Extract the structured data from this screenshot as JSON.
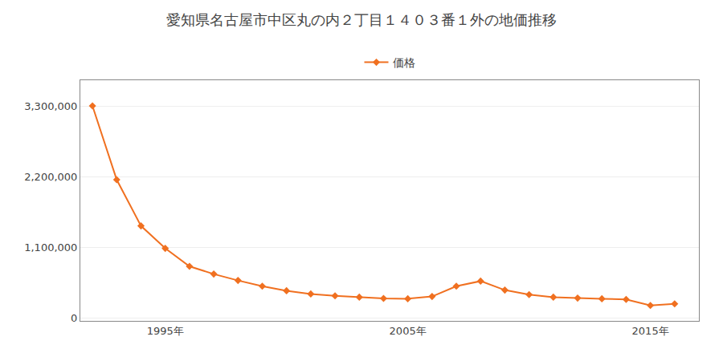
{
  "chart_data": {
    "type": "line",
    "title": "愛知県名古屋市中区丸の内２丁目１４０３番１外の地価推移",
    "x": [
      1992,
      1993,
      1994,
      1995,
      1996,
      1997,
      1998,
      1999,
      2000,
      2001,
      2002,
      2003,
      2004,
      2005,
      2006,
      2007,
      2008,
      2009,
      2010,
      2011,
      2012,
      2013,
      2014,
      2015,
      2016
    ],
    "series": [
      {
        "name": "価格",
        "color": "#f07020",
        "values": [
          3300000,
          2150000,
          1430000,
          1080000,
          800000,
          680000,
          580000,
          490000,
          420000,
          370000,
          340000,
          320000,
          300000,
          295000,
          330000,
          490000,
          570000,
          430000,
          360000,
          320000,
          305000,
          295000,
          285000,
          190000,
          215000
        ]
      }
    ],
    "xlim": [
      1991.5,
      2017.0
    ],
    "xticks": [
      {
        "value": 1995,
        "label": "1995年"
      },
      {
        "value": 2005,
        "label": "2005年"
      },
      {
        "value": 2015,
        "label": "2015年"
      }
    ],
    "ylim": [
      -50000,
      3700000
    ],
    "yticks": [
      0,
      {
        "value": 1100000,
        "label": "1,100,000"
      },
      {
        "value": 2200000,
        "label": "2,200,000"
      },
      {
        "value": 3300000,
        "label": "3,300,000"
      }
    ],
    "grid": "y",
    "legend": "top",
    "marker": "diamond"
  }
}
